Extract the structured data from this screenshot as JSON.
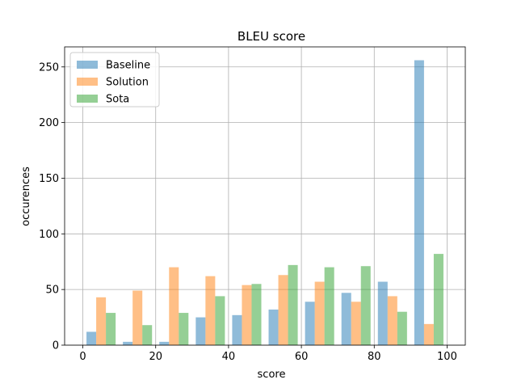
{
  "chart_data": {
    "type": "bar",
    "title": "BLEU score",
    "xlabel": "score",
    "ylabel": "occurences",
    "xlim": [
      -5,
      105
    ],
    "ylim": [
      0,
      268
    ],
    "xticks": [
      0,
      20,
      40,
      60,
      80,
      100
    ],
    "yticks": [
      0,
      50,
      100,
      150,
      200,
      250
    ],
    "grid": true,
    "legend_position": "top-left",
    "bins": [
      [
        0,
        10
      ],
      [
        10,
        20
      ],
      [
        20,
        30
      ],
      [
        30,
        40
      ],
      [
        40,
        50
      ],
      [
        50,
        60
      ],
      [
        60,
        70
      ],
      [
        70,
        80
      ],
      [
        80,
        90
      ],
      [
        90,
        100
      ]
    ],
    "series": [
      {
        "name": "Baseline",
        "color": "#1f77b4",
        "values": [
          12,
          3,
          3,
          25,
          27,
          32,
          39,
          47,
          57,
          256
        ]
      },
      {
        "name": "Solution",
        "color": "#ff7f0e",
        "values": [
          43,
          49,
          70,
          62,
          54,
          63,
          57,
          39,
          44,
          19
        ]
      },
      {
        "name": "Sota",
        "color": "#2ca02c",
        "values": [
          29,
          18,
          29,
          44,
          55,
          72,
          70,
          71,
          30,
          82
        ]
      }
    ]
  }
}
